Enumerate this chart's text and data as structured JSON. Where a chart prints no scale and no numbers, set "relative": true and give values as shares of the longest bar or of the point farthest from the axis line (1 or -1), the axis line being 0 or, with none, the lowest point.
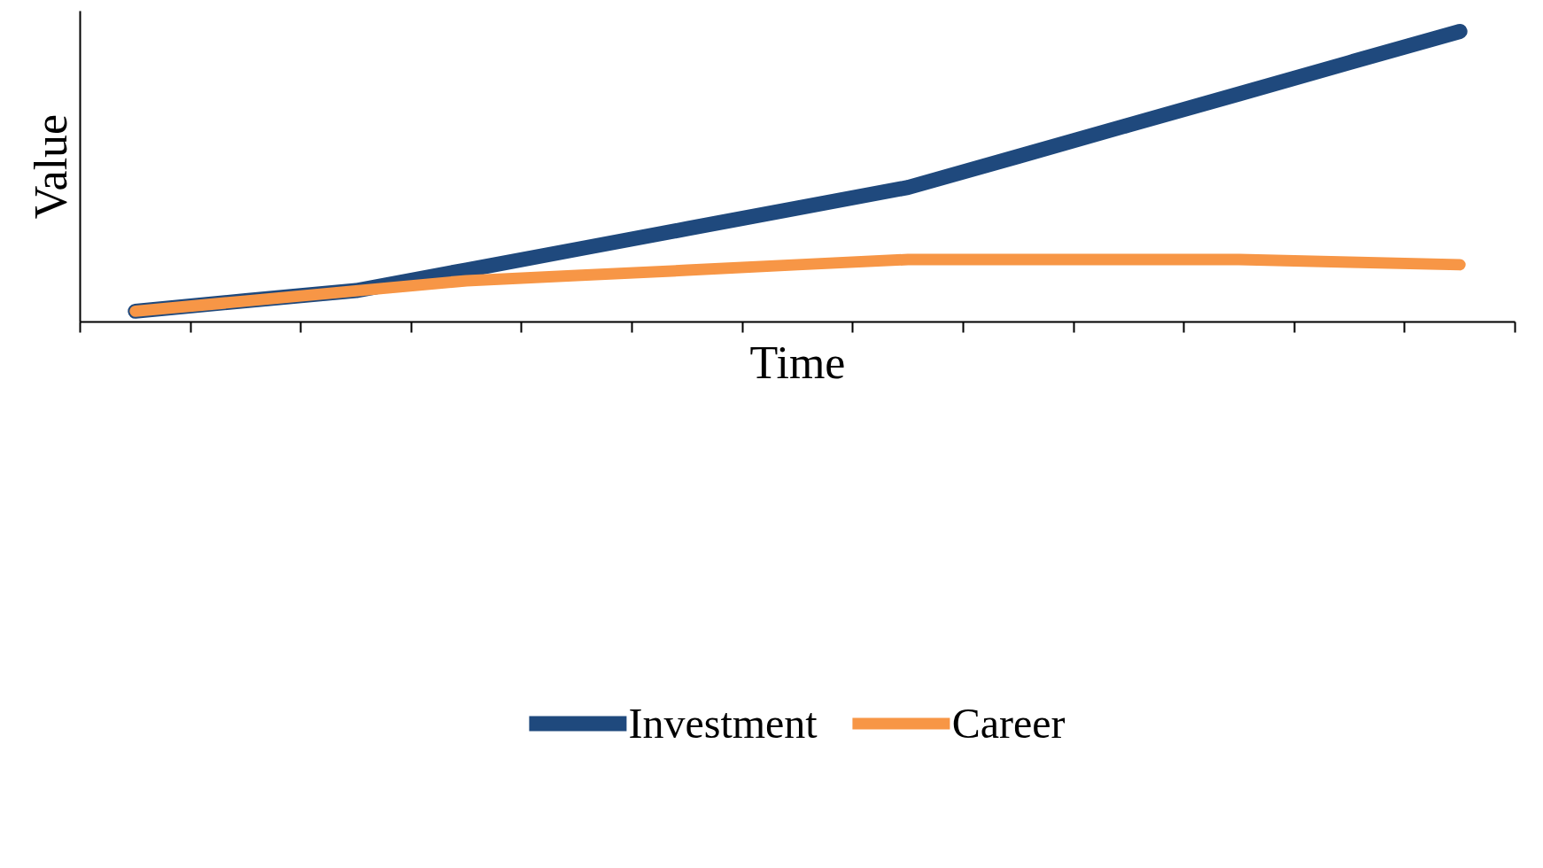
{
  "chart_data": {
    "type": "line",
    "xlabel": "Time",
    "ylabel": "Value",
    "relative": true,
    "legend": "bottom",
    "marker": "none",
    "line_style": "solid",
    "categories": [
      null,
      null,
      null,
      null,
      null,
      null,
      null,
      null,
      null,
      null,
      null,
      null,
      null
    ],
    "series": [
      {
        "name": "Investment",
        "color": "#1f497d",
        "values": [
          0.037,
          0.073,
          0.108,
          0.179,
          0.25,
          0.321,
          0.392,
          0.463,
          0.57,
          0.678,
          0.785,
          0.893,
          1.0
        ]
      },
      {
        "name": "Career",
        "color": "#f79646",
        "values": [
          0.037,
          0.072,
          0.107,
          0.142,
          0.16,
          0.178,
          0.197,
          0.215,
          0.215,
          0.215,
          0.215,
          0.206,
          0.197
        ]
      }
    ]
  }
}
